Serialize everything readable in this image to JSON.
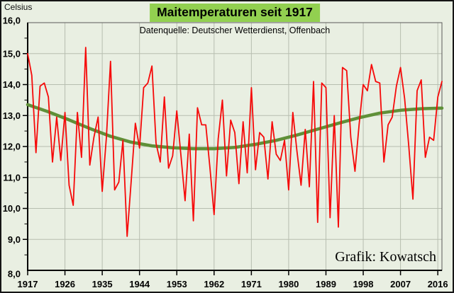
{
  "colors": {
    "background": "#e9efe2",
    "title_highlight": "#92d050",
    "red_line": "#f60909",
    "trend_line": "#5f9038",
    "gridline": "#b7beb0",
    "plot_border": "#5a5a5a",
    "axis": "#000000"
  },
  "chart_data": {
    "type": "line",
    "title": "Maitemperaturen seit 1917",
    "source": "Datenquelle: Deutscher Wetterdienst, Offenbach",
    "unit_label": "Celsius",
    "credit": "Grafik: Kowatsch",
    "xlim": [
      1917,
      2017
    ],
    "ylim": [
      8,
      16
    ],
    "grid": true,
    "x_ticks": [
      1917,
      1926,
      1935,
      1944,
      1953,
      1962,
      1971,
      1980,
      1989,
      1998,
      2007,
      2016
    ],
    "y_ticks": [
      {
        "value": 16,
        "label": "16,0"
      },
      {
        "value": 15,
        "label": "15,0"
      },
      {
        "value": 14,
        "label": "14,0"
      },
      {
        "value": 13,
        "label": "13,0"
      },
      {
        "value": 12,
        "label": "12,0"
      },
      {
        "value": 11,
        "label": "11,0"
      },
      {
        "value": 10,
        "label": "10,0"
      },
      {
        "value": 9,
        "label": "9,0"
      },
      {
        "value": 8,
        "label": "8,0"
      }
    ],
    "y_minor_tick_step": 0.5,
    "series": [
      {
        "id": "may-temperature-yearly",
        "color": "#f60909",
        "x_start": 1917,
        "x_step": 1,
        "values": [
          15.0,
          14.3,
          11.8,
          13.95,
          14.05,
          13.6,
          11.5,
          12.95,
          11.55,
          13.1,
          10.75,
          10.1,
          13.1,
          11.65,
          15.2,
          11.4,
          12.3,
          12.95,
          10.55,
          12.3,
          14.75,
          10.6,
          10.85,
          12.2,
          9.1,
          10.9,
          12.75,
          11.95,
          13.9,
          14.05,
          14.6,
          12.1,
          11.5,
          13.6,
          11.3,
          11.7,
          13.15,
          11.7,
          10.25,
          12.4,
          9.6,
          13.25,
          12.7,
          12.7,
          11.3,
          9.8,
          12.25,
          13.5,
          11.05,
          12.85,
          12.45,
          10.8,
          12.8,
          11.15,
          13.9,
          11.25,
          12.45,
          12.3,
          10.95,
          12.8,
          11.75,
          11.55,
          12.2,
          10.6,
          13.1,
          11.85,
          10.75,
          12.55,
          10.7,
          14.1,
          9.55,
          14.05,
          13.9,
          9.7,
          13.0,
          9.4,
          14.55,
          14.45,
          12.3,
          11.2,
          12.7,
          14.0,
          13.8,
          14.65,
          14.1,
          14.05,
          11.5,
          12.7,
          12.95,
          13.95,
          14.55,
          13.55,
          12.0,
          10.3,
          13.8,
          14.15,
          11.65,
          12.3,
          12.2,
          13.6,
          14.1
        ]
      },
      {
        "id": "trend-smoothed",
        "color": "#5f9038",
        "x": [
          1917,
          1922,
          1927,
          1932,
          1937,
          1942,
          1947,
          1952,
          1957,
          1962,
          1967,
          1972,
          1977,
          1982,
          1987,
          1992,
          1997,
          2002,
          2007,
          2012,
          2017
        ],
        "values": [
          13.35,
          13.12,
          12.86,
          12.58,
          12.33,
          12.14,
          12.02,
          11.96,
          11.93,
          11.93,
          11.97,
          12.07,
          12.2,
          12.37,
          12.56,
          12.75,
          12.93,
          13.08,
          13.17,
          13.22,
          13.24
        ]
      }
    ]
  }
}
